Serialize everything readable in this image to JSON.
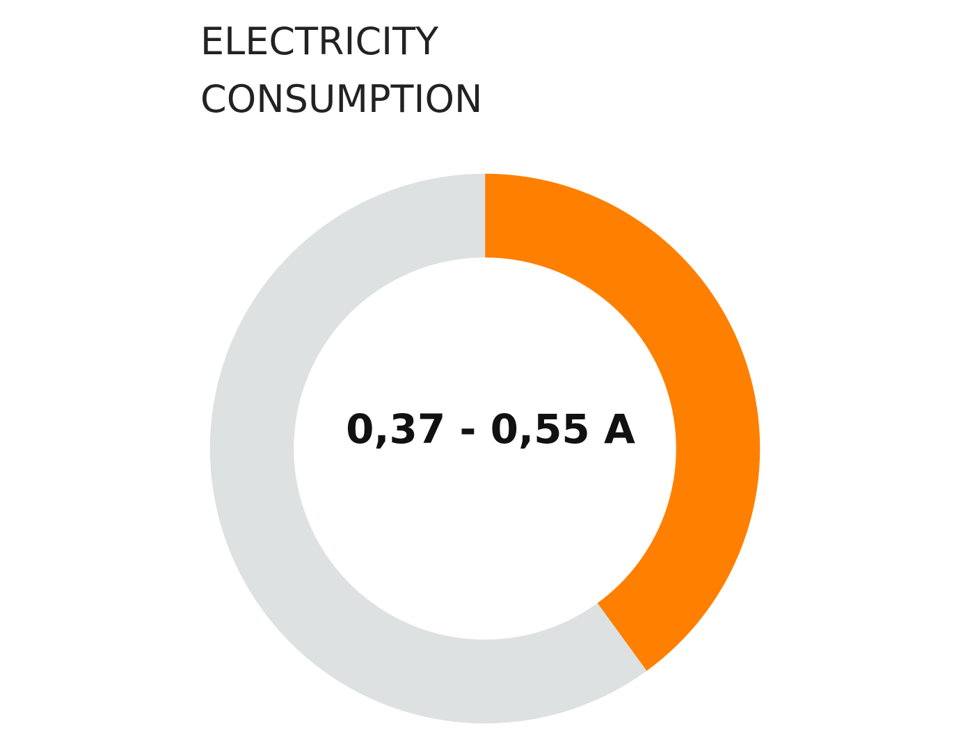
{
  "chart_data": {
    "type": "donut",
    "title": [
      "ELECTRICITY",
      "CONSUMPTION"
    ],
    "center_label": "0,37 - 0,55 A",
    "values": [
      20,
      20,
      40,
      20
    ],
    "colors": [
      "#ff7f00",
      "#ff7f00",
      "#dde1e1",
      "#dde1e1"
    ]
  }
}
